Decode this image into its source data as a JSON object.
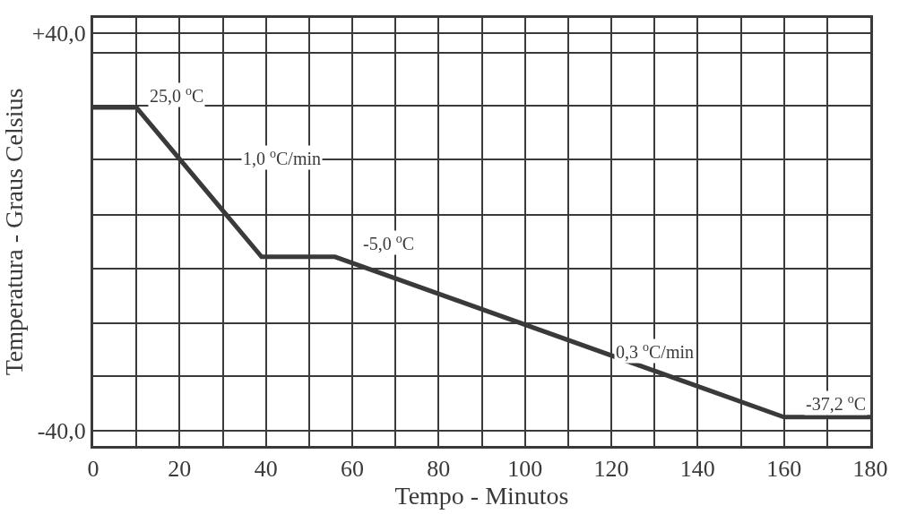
{
  "chart_data": {
    "type": "line",
    "xlabel": "Tempo - Minutos",
    "ylabel": "Temperatura - Graus Celsius",
    "x": [
      0,
      10,
      39,
      56,
      160,
      180
    ],
    "series": [
      {
        "color": "#3a3a3a",
        "values": [
          25,
          25,
          -5,
          -5,
          -37.2,
          -37.2
        ]
      }
    ],
    "xlim": [
      0,
      180
    ],
    "xticks": [
      0,
      {
        "value": 10,
        "label": null
      },
      20,
      {
        "value": 30,
        "label": null
      },
      40,
      {
        "value": 50,
        "label": null
      },
      60,
      {
        "value": 70,
        "label": null
      },
      80,
      {
        "value": 90,
        "label": null
      },
      100,
      {
        "value": 110,
        "label": null
      },
      120,
      {
        "value": 130,
        "label": null
      },
      140,
      {
        "value": 150,
        "label": null
      },
      160,
      {
        "value": 170,
        "label": null
      },
      180
    ],
    "ylim": [
      -43,
      43
    ],
    "yticks": [
      {
        "value": -40,
        "label": "-40,0"
      },
      {
        "value": -29,
        "label": null
      },
      {
        "value": -18.3,
        "label": null
      },
      {
        "value": -7.4,
        "label": null
      },
      {
        "value": 3.5,
        "label": null
      },
      {
        "value": 14.5,
        "label": null
      },
      {
        "value": 25.4,
        "label": null
      },
      {
        "value": 36,
        "label": null
      },
      {
        "value": 40,
        "label": "+40,0"
      }
    ],
    "annotations": [
      {
        "text": "25,0 $^{o}$C",
        "x": 10,
        "y": 25
      },
      {
        "text": "1,0 $^{o}$C/min",
        "x": 25,
        "y": 9.5
      },
      {
        "text": "-5,0 $^{o}$C",
        "x": 60,
        "y": -5
      },
      {
        "text": "0,3 $^{o}$C/min",
        "x": 130,
        "y": -27.9
      },
      {
        "text": "-37,2 $^{o}$C",
        "x": 172,
        "y": -37.2
      }
    ],
    "grid": true,
    "marker": "none",
    "line_style": "solid"
  }
}
